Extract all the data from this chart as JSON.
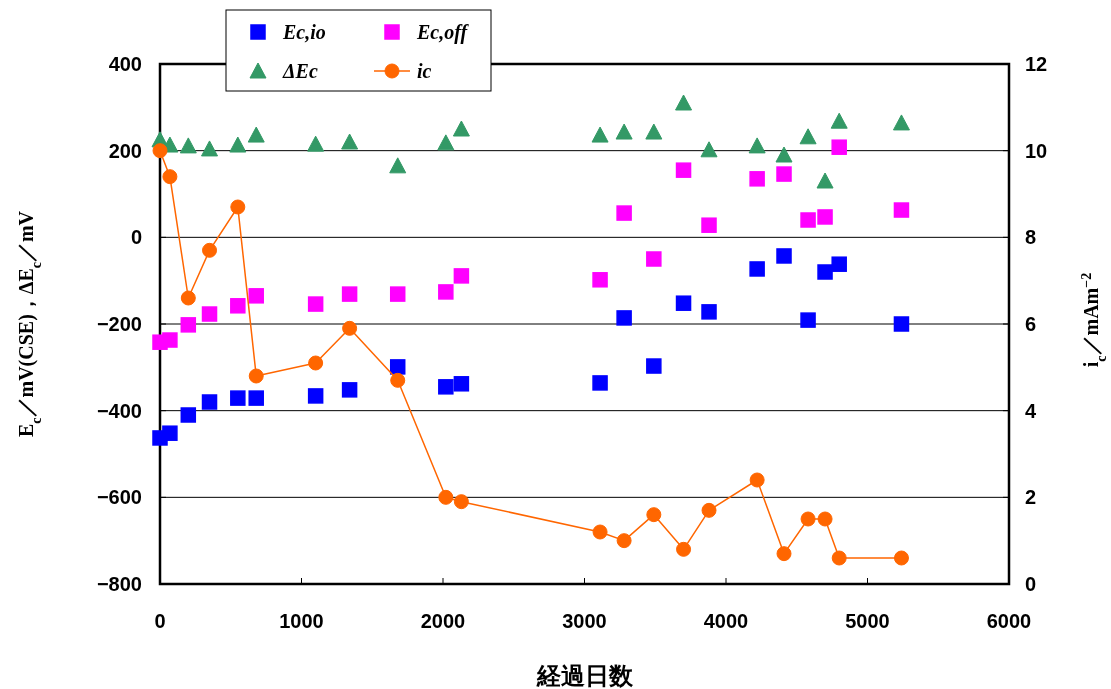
{
  "chart_data": {
    "type": "scatter",
    "xlabel": "経過日数",
    "ylabel": "E$_{c}$／mV(CSE)，ΔE$_{c}$／mV",
    "y2label": "i$_{c}$／mAm$^{−2}$",
    "x": [
      0,
      70,
      200,
      350,
      550,
      680,
      1100,
      1340,
      1680,
      2020,
      2130,
      3110,
      3280,
      3490,
      3700,
      3880,
      4220,
      4410,
      4580,
      4700,
      4800,
      5240
    ],
    "series": [
      {
        "name": "Ec,io",
        "marker": "square",
        "color": "#0000ff",
        "values": [
          -463,
          -452,
          -410,
          -380,
          -371,
          -371,
          -366,
          -352,
          -299,
          -345,
          -338,
          -336,
          -186,
          -297,
          -152,
          -172,
          -73,
          -43,
          -191,
          -80,
          -62,
          -200
        ]
      },
      {
        "name": "Ec,off",
        "marker": "square",
        "color": "#ff00ff",
        "values": [
          -242,
          -237,
          -202,
          -177,
          -158,
          -135,
          -154,
          -131,
          -131,
          -126,
          -89,
          -98,
          56,
          -50,
          155,
          28,
          135,
          146,
          40,
          47,
          208,
          63
        ]
      },
      {
        "name": "ΔEc",
        "marker": "triangle",
        "color": "#339966",
        "values": [
          225,
          213,
          211,
          204,
          213,
          236,
          215,
          220,
          165,
          218,
          250,
          236,
          243,
          243,
          310,
          202,
          211,
          190,
          232,
          130,
          268,
          264
        ]
      },
      {
        "name": "ic",
        "type": "line",
        "marker": "circle",
        "axis": "y2",
        "color": "#ff6600",
        "values": [
          10.0,
          9.4,
          6.6,
          7.7,
          8.7,
          4.8,
          5.1,
          5.9,
          4.7,
          2.0,
          1.9,
          1.2,
          1.0,
          1.6,
          0.8,
          1.7,
          2.4,
          0.7,
          1.5,
          1.5,
          0.6,
          0.6
        ]
      }
    ],
    "xlim": [
      0,
      6000
    ],
    "xticks": [
      0,
      1000,
      2000,
      3000,
      4000,
      5000,
      6000
    ],
    "ylim": [
      -800,
      400
    ],
    "yticks": [
      -800,
      -600,
      -400,
      -200,
      0,
      200,
      400
    ],
    "y2lim": [
      0,
      12
    ],
    "y2ticks": [
      0,
      2,
      4,
      6,
      8,
      10,
      12
    ],
    "grid": "y",
    "legend": "top"
  }
}
